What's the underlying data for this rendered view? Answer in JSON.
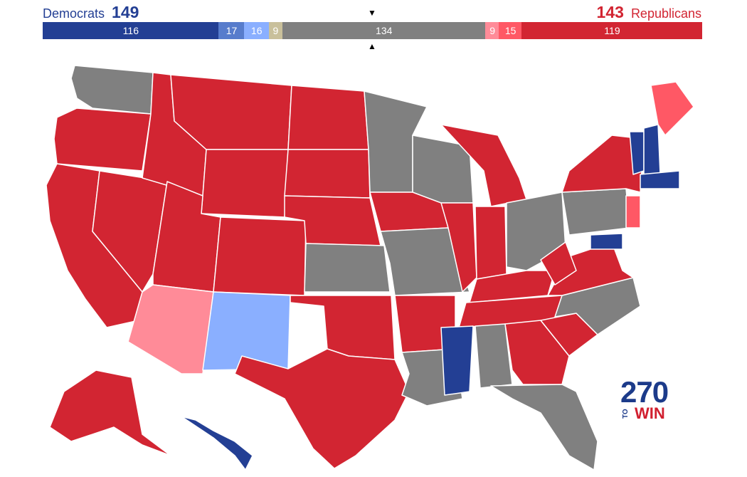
{
  "header": {
    "dem_name": "Democrats",
    "dem_total": "149",
    "rep_total": "143",
    "rep_name": "Republicans",
    "marker_top": "▼",
    "marker_bottom": "▲"
  },
  "bar_segments": [
    {
      "id": "safe-dem",
      "label": "116",
      "seats": 116,
      "color": "#233f94"
    },
    {
      "id": "likely-dem",
      "label": "17",
      "seats": 17,
      "color": "#577ccc"
    },
    {
      "id": "lean-dem",
      "label": "16",
      "seats": 16,
      "color": "#8aafff"
    },
    {
      "id": "tilt-dem",
      "label": "9",
      "seats": 9,
      "color": "#c9c09b"
    },
    {
      "id": "tossup",
      "label": "134",
      "seats": 134,
      "color": "#808080"
    },
    {
      "id": "lean-rep",
      "label": "9",
      "seats": 9,
      "color": "#ff8b98"
    },
    {
      "id": "likely-rep",
      "label": "15",
      "seats": 15,
      "color": "#ff5865"
    },
    {
      "id": "safe-rep",
      "label": "119",
      "seats": 119,
      "color": "#d22532"
    }
  ],
  "colors": {
    "safe_rep": "#d22532",
    "likely_rep": "#ff5865",
    "lean_rep": "#ff8b98",
    "tossup": "#808080",
    "tilt": "#c9c09b",
    "lean_dem": "#8aafff",
    "likely_dem": "#577ccc",
    "safe_dem": "#233f94",
    "border": "#ffffff"
  },
  "logo": {
    "number": "270",
    "to": "TO",
    "win": "WIN"
  }
}
